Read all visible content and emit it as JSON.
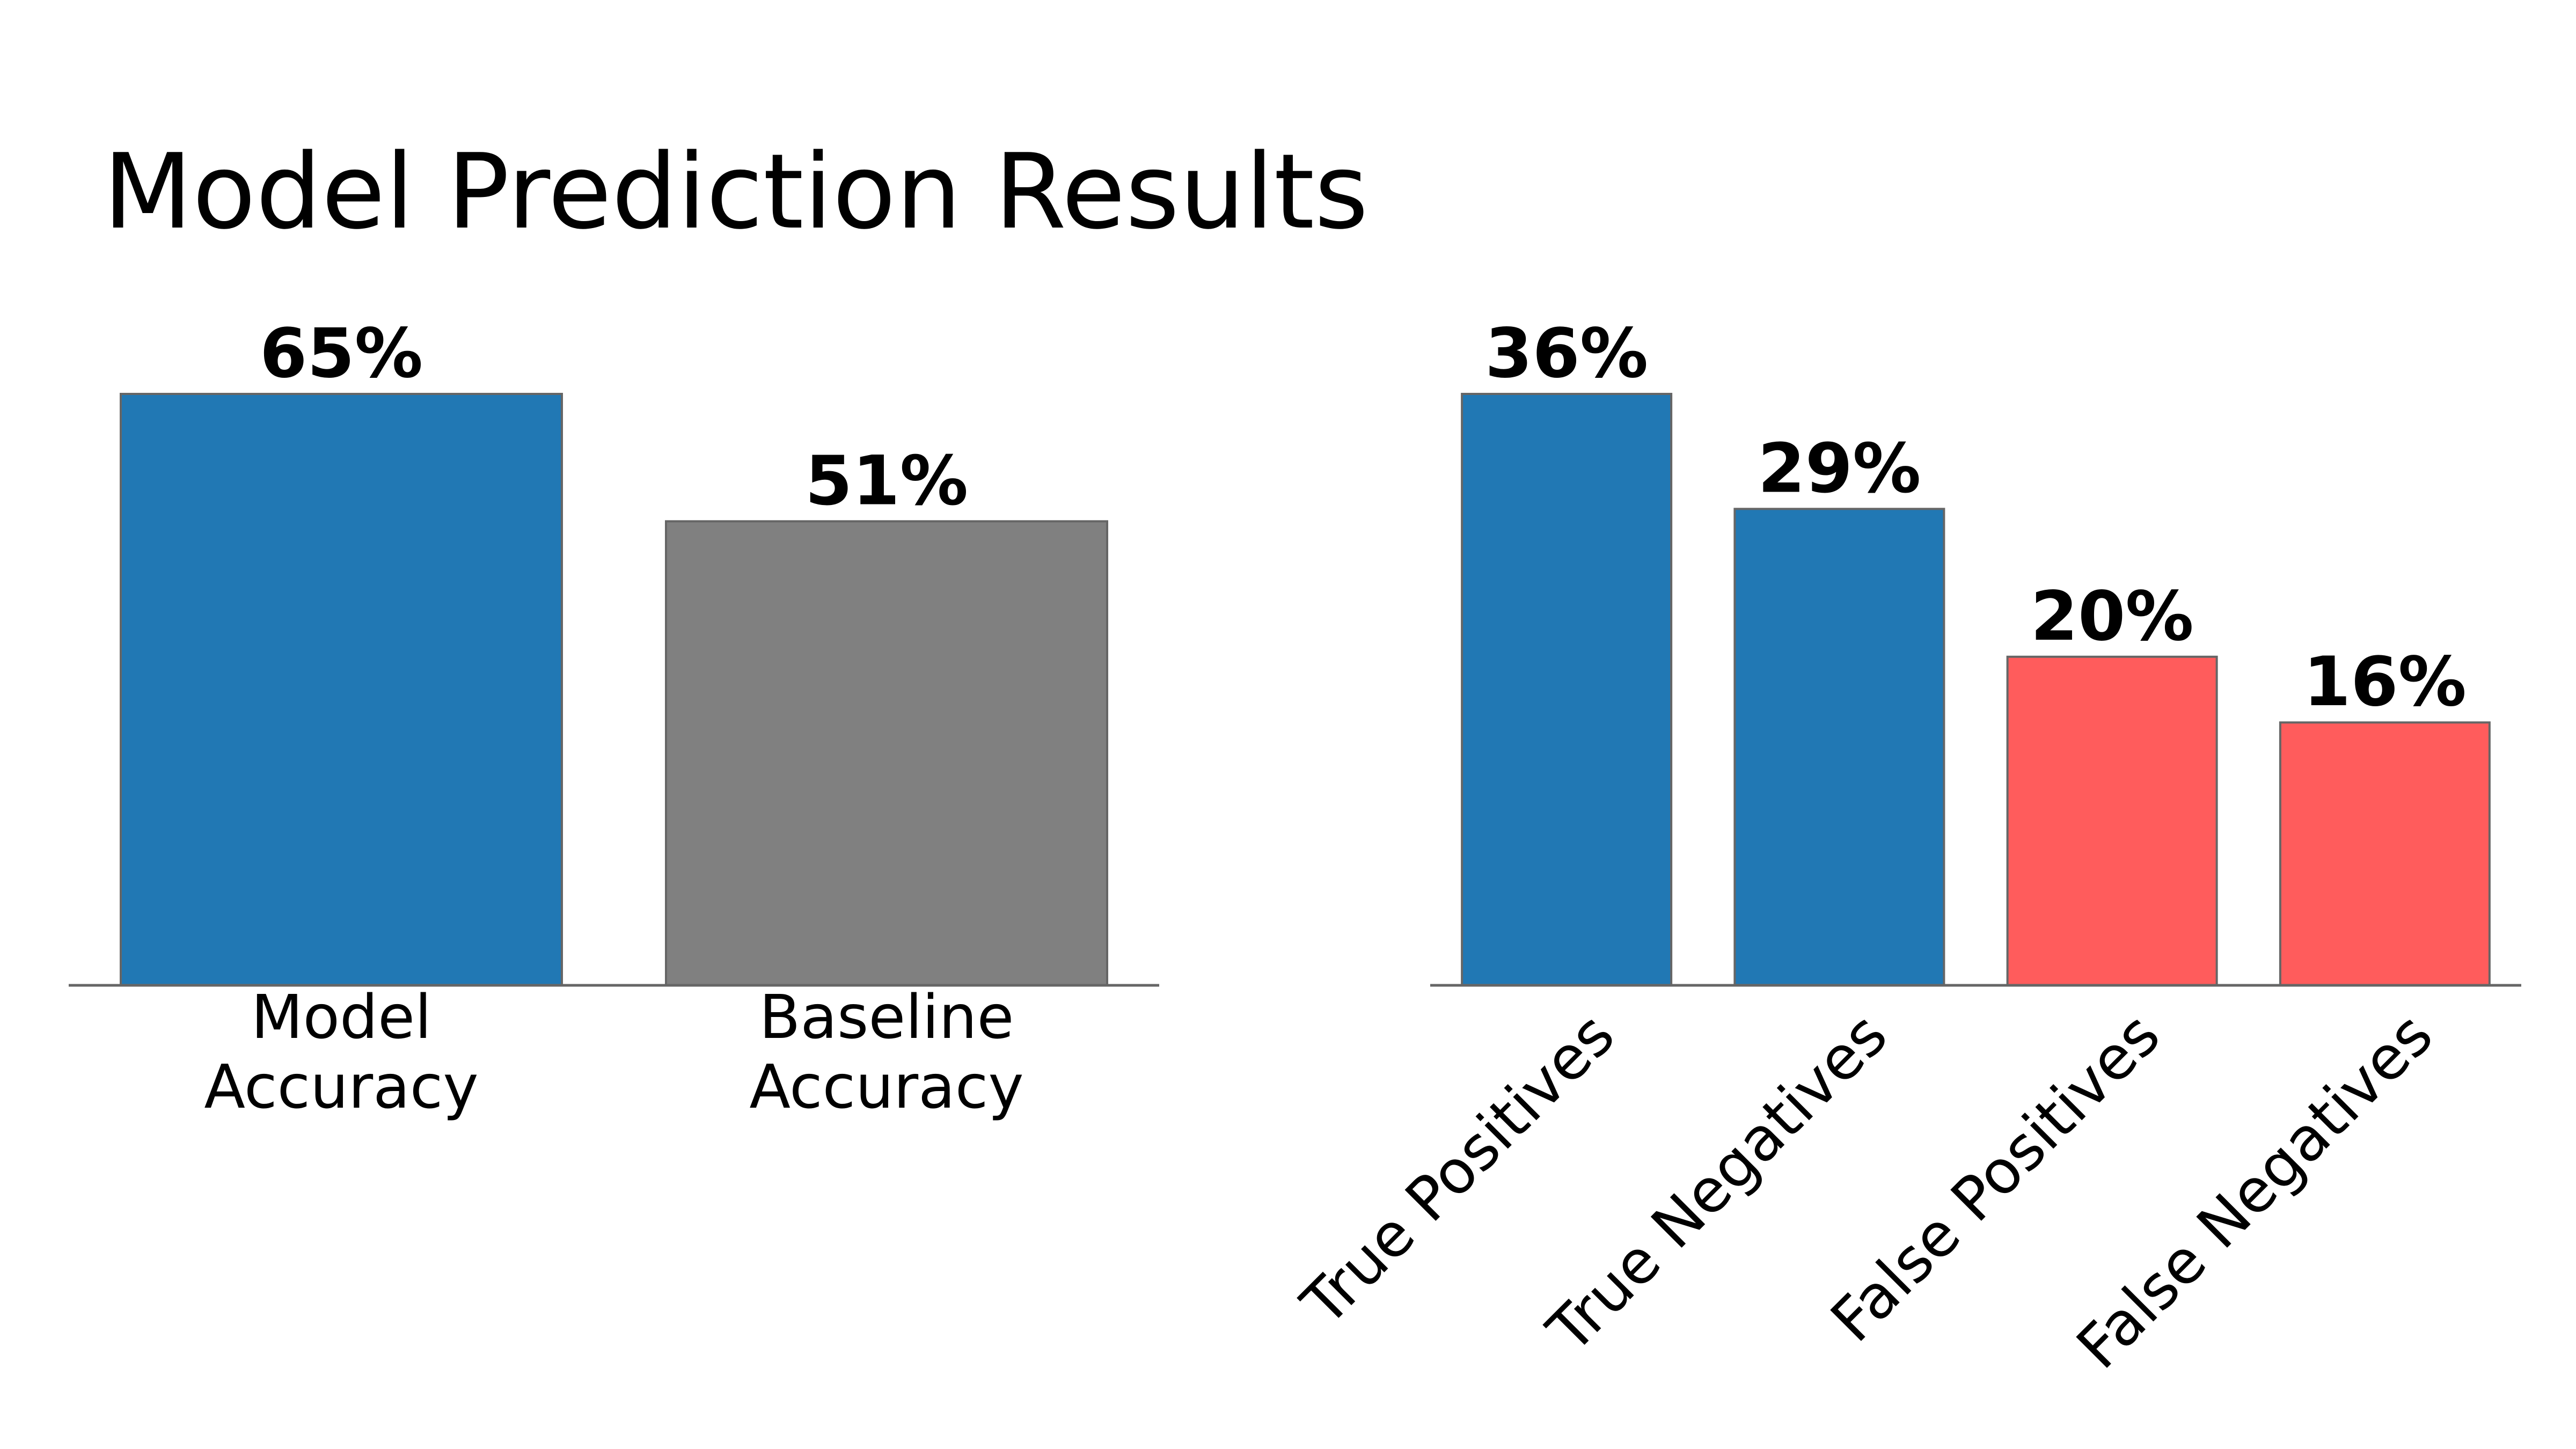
{
  "title": "Model Prediction Results",
  "chart_data": [
    {
      "type": "bar",
      "categories": [
        "Model\nAccuracy",
        "Baseline\nAccuracy"
      ],
      "values": [
        65,
        51
      ],
      "value_labels": [
        "65%",
        "51%"
      ],
      "colors": [
        "#2178b4",
        "#808080"
      ],
      "xlabel": "",
      "ylabel": "",
      "tick_rotation": 0,
      "grid": false,
      "y_axis_visible": false
    },
    {
      "type": "bar",
      "categories": [
        "True Positives",
        "True Negatives",
        "False Positives",
        "False Negatives"
      ],
      "values": [
        36,
        29,
        20,
        16
      ],
      "value_labels": [
        "36%",
        "29%",
        "20%",
        "16%"
      ],
      "colors": [
        "#2178b4",
        "#2178b4",
        "#ff5c5c",
        "#ff5c5c"
      ],
      "xlabel": "",
      "ylabel": "",
      "tick_rotation": 45,
      "grid": false,
      "y_axis_visible": false
    }
  ]
}
